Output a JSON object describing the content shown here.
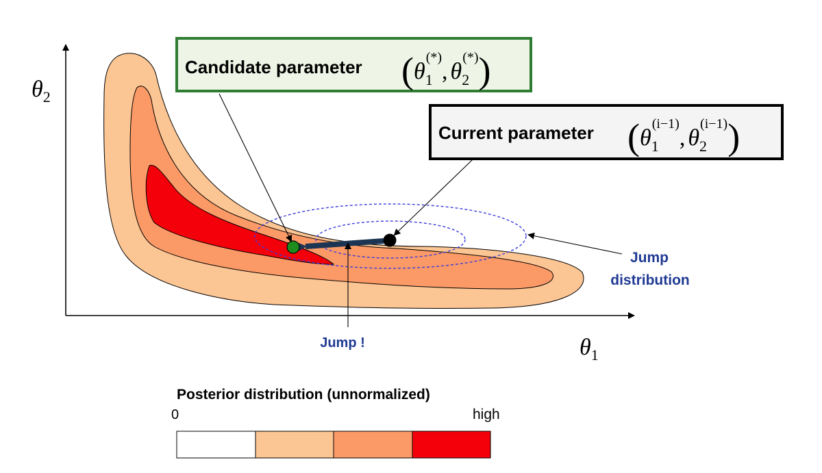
{
  "axes": {
    "x_symbol": "θ",
    "x_subscript": "1",
    "y_symbol": "θ",
    "y_subscript": "2"
  },
  "candidate": {
    "label": "Candidate parameter",
    "symbol": "θ",
    "sub1": "1",
    "sub2": "2",
    "sup": "(*)",
    "comma": ",",
    "open": "(",
    "close": ")",
    "point_color": "#1e8c1e",
    "box_border_color": "#2e7d32",
    "box_fill_color": "#eef5e6"
  },
  "current": {
    "label": "Current parameter",
    "symbol": "θ",
    "sub1": "1",
    "sub2": "2",
    "sup": "(i−1)",
    "comma": ",",
    "open": "(",
    "close": ")",
    "point_color": "#000000"
  },
  "annotations": {
    "jump_line1": "Jump",
    "jump_line2": "distribution",
    "jump_bang": "Jump !",
    "text_color": "#1f3a93",
    "ellipse_color": "#3b3bdc"
  },
  "legend": {
    "title": "Posterior distribution (unnormalized)",
    "low_label": "0",
    "high_label": "high",
    "colors": [
      "#ffffff",
      "#fcc594",
      "#fb9a66",
      "#f4000a"
    ]
  }
}
